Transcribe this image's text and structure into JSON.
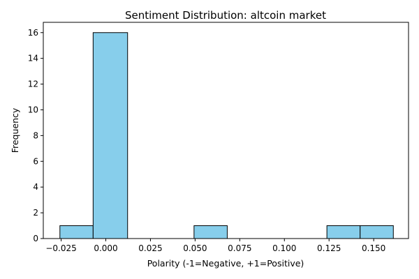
{
  "chart_data": {
    "type": "bar",
    "title": "Sentiment Distribution: altcoin market",
    "xlabel": "Polarity (-1=Negative, +1=Positive)",
    "ylabel": "Frequency",
    "bar_color": "#87ceeb",
    "edge_color": "#000000",
    "bins": [
      {
        "start": -0.0257,
        "end": -0.0071,
        "count": 1
      },
      {
        "start": -0.0071,
        "end": 0.0122,
        "count": 16
      },
      {
        "start": 0.0122,
        "end": 0.0308,
        "count": 0
      },
      {
        "start": 0.0308,
        "end": 0.0494,
        "count": 0
      },
      {
        "start": 0.0494,
        "end": 0.068,
        "count": 1
      },
      {
        "start": 0.068,
        "end": 0.0866,
        "count": 0
      },
      {
        "start": 0.0866,
        "end": 0.1052,
        "count": 0
      },
      {
        "start": 0.1052,
        "end": 0.1238,
        "count": 0
      },
      {
        "start": 0.1238,
        "end": 0.1424,
        "count": 1
      },
      {
        "start": 0.1424,
        "end": 0.161,
        "count": 1
      }
    ],
    "xlim": [
      -0.035,
      0.1695
    ],
    "ylim": [
      0,
      16.8
    ],
    "x_ticks": [
      -0.025,
      0.0,
      0.025,
      0.05,
      0.075,
      0.1,
      0.125,
      0.15
    ],
    "x_tick_labels": [
      "−0.025",
      "0.000",
      "0.025",
      "0.050",
      "0.075",
      "0.100",
      "0.125",
      "0.150"
    ],
    "y_ticks": [
      0,
      2,
      4,
      6,
      8,
      10,
      12,
      14,
      16
    ],
    "y_tick_labels": [
      "0",
      "2",
      "4",
      "6",
      "8",
      "10",
      "12",
      "14",
      "16"
    ],
    "grid": false,
    "legend": "none"
  }
}
